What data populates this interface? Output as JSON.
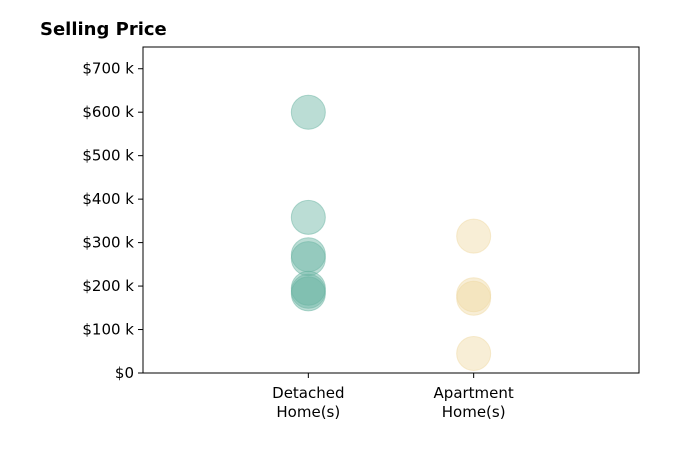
{
  "chart_data": {
    "type": "scatter",
    "title": "Selling Price",
    "xlabel": "",
    "ylabel": "",
    "categories": [
      [
        "Detached",
        "Home(s)"
      ],
      [
        "Apartment",
        "Home(s)"
      ]
    ],
    "x_range": [
      -1,
      2
    ],
    "ylim": [
      0,
      750
    ],
    "y_ticks": [
      0,
      100,
      200,
      300,
      400,
      500,
      600,
      700
    ],
    "y_tick_labels": [
      "$0",
      "$100 k",
      "$200 k",
      "$300 k",
      "$400 k",
      "$500 k",
      "$600 k",
      "$700 k"
    ],
    "grid": false,
    "legend": "none",
    "series": [
      {
        "category_index": 0,
        "color": "#69b3a2",
        "values": [
          600,
          358,
          272,
          263,
          195,
          188,
          182
        ]
      },
      {
        "category_index": 1,
        "color": "#f0d9a4",
        "values": [
          315,
          180,
          172,
          45
        ]
      }
    ]
  }
}
